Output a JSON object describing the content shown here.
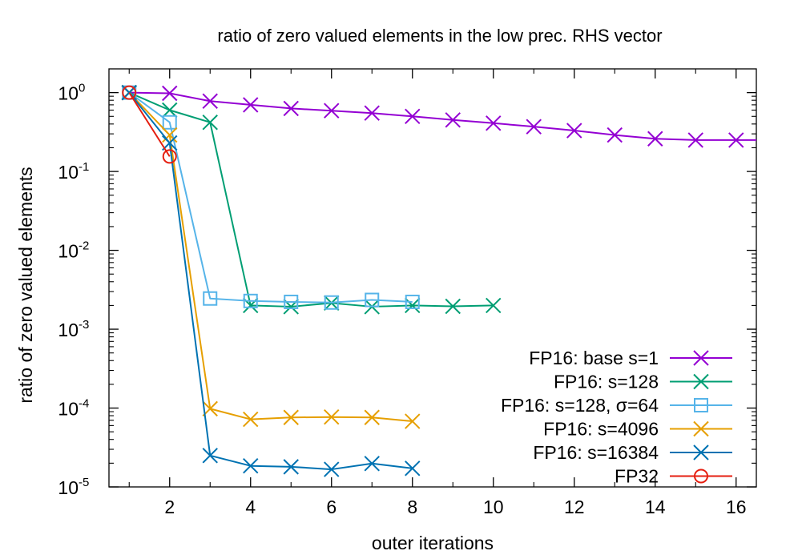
{
  "chart_data": {
    "type": "line",
    "title": "ratio of zero valued elements in the low prec. RHS vector",
    "xlabel": "outer iterations",
    "ylabel": "ratio of zero valued elements",
    "xlim": [
      0.5,
      16.5
    ],
    "ylim": [
      1e-05,
      2
    ],
    "yscale": "log",
    "grid": false,
    "legend_position": "bottom-right",
    "x_ticks": [
      2,
      4,
      6,
      8,
      10,
      12,
      14,
      16
    ],
    "x_tick_labels": [
      "2",
      "4",
      "6",
      "8",
      "10",
      "12",
      "14",
      "16"
    ],
    "y_ticks": [
      {
        "value": 1e-05,
        "base": "10",
        "exp": "-5"
      },
      {
        "value": 0.0001,
        "base": "10",
        "exp": "-4"
      },
      {
        "value": 0.001,
        "base": "10",
        "exp": "-3"
      },
      {
        "value": 0.01,
        "base": "10",
        "exp": "-2"
      },
      {
        "value": 0.1,
        "base": "10",
        "exp": "-1"
      },
      {
        "value": 1,
        "base": "10",
        "exp": "0"
      }
    ],
    "series": [
      {
        "name": "FP16: base s=1",
        "color": "#9400d3",
        "marker": "x",
        "x": [
          1,
          2,
          3,
          4,
          5,
          6,
          7,
          8,
          9,
          10,
          11,
          12,
          13,
          14,
          15,
          16,
          16.5
        ],
        "y": [
          1.0,
          0.98,
          0.78,
          0.7,
          0.63,
          0.59,
          0.55,
          0.5,
          0.45,
          0.41,
          0.37,
          0.33,
          0.29,
          0.26,
          0.25,
          0.25,
          0.25
        ]
      },
      {
        "name": "FP16: s=128",
        "color": "#009e73",
        "marker": "x",
        "x": [
          1,
          2,
          3,
          4,
          5,
          6,
          7,
          8,
          9,
          10
        ],
        "y": [
          1.0,
          0.6,
          0.42,
          0.002,
          0.00193,
          0.00215,
          0.00193,
          0.002,
          0.00195,
          0.002
        ]
      },
      {
        "name": "FP16: s=128, σ=64",
        "color": "#56b4e9",
        "marker": "square",
        "x": [
          1,
          2,
          3,
          4,
          5,
          6,
          7,
          8
        ],
        "y": [
          1.0,
          0.42,
          0.00245,
          0.00228,
          0.00222,
          0.00218,
          0.00235,
          0.00222
        ]
      },
      {
        "name": "FP16: s=4096",
        "color": "#e69f00",
        "marker": "x",
        "x": [
          1,
          2,
          3,
          4,
          5,
          6,
          7,
          8
        ],
        "y": [
          1.0,
          0.29,
          9.8e-05,
          7.2e-05,
          7.6e-05,
          7.7e-05,
          7.6e-05,
          6.8e-05
        ]
      },
      {
        "name": "FP16: s=16384",
        "color": "#0072b2",
        "marker": "x",
        "x": [
          1,
          2,
          3,
          4,
          5,
          6,
          7,
          8
        ],
        "y": [
          1.0,
          0.23,
          2.5e-05,
          1.85e-05,
          1.8e-05,
          1.67e-05,
          1.98e-05,
          1.72e-05
        ]
      },
      {
        "name": "FP32",
        "color": "#e51e10",
        "marker": "circle",
        "x": [
          1,
          2
        ],
        "y": [
          1.0,
          0.155
        ]
      }
    ]
  }
}
